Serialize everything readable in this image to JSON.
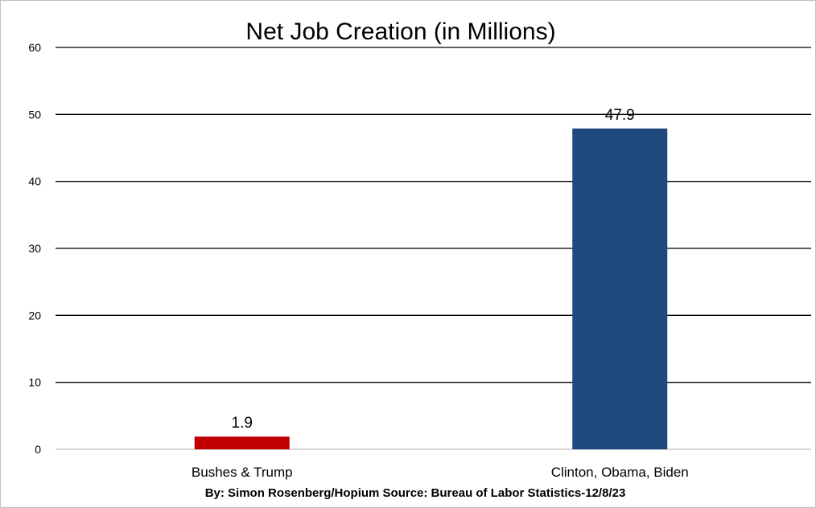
{
  "chart_data": {
    "type": "bar",
    "title": "Net Job Creation (in Millions)",
    "categories": [
      "Bushes & Trump",
      "Clinton, Obama, Biden"
    ],
    "values": [
      1.9,
      47.9
    ],
    "data_labels": [
      "1.9",
      "47.9"
    ],
    "colors": [
      "#c00000",
      "#1f497d"
    ],
    "ylim": [
      0,
      60
    ],
    "yticks": [
      0,
      10,
      20,
      30,
      40,
      50,
      60
    ],
    "grid": true,
    "legend": "none",
    "xlabel": "",
    "ylabel": ""
  },
  "footer": {
    "credit": "By: Simon Rosenberg/Hopium Source: Bureau of Labor Statistics-12/8/23"
  }
}
